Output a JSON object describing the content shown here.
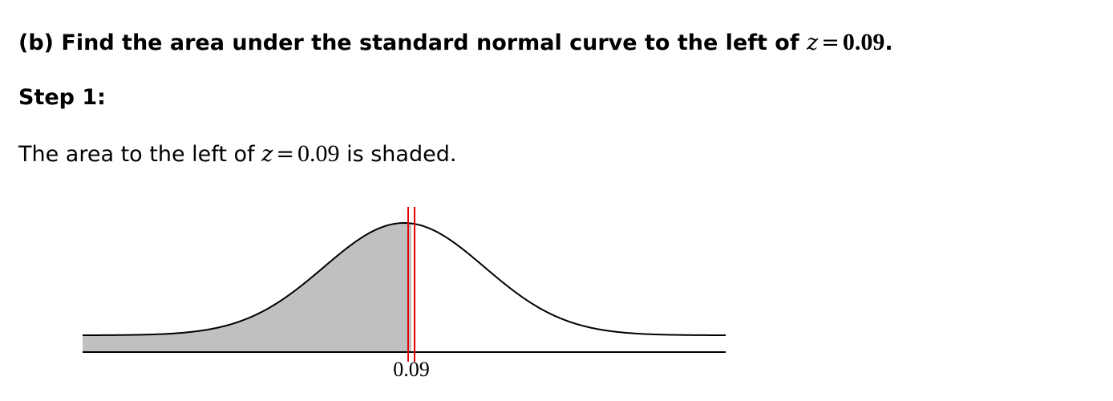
{
  "question": {
    "prefix": "(b) Find the area under the standard normal curve to the left of",
    "variable": "z",
    "operator": "=",
    "value": "0.09",
    "suffix": "."
  },
  "step": {
    "label": "Step 1:"
  },
  "description": {
    "prefix": "The area to the left of",
    "variable": "z",
    "operator": "=",
    "value": "0.09",
    "suffix": "is shaded."
  },
  "chart_data": {
    "type": "area",
    "distribution": "standard normal",
    "shade": "left",
    "z_value": 0.09,
    "marker_label": "0.09",
    "x_range": [
      -4,
      4
    ],
    "colors": {
      "curve": "#000000",
      "shaded": "#c0c0c0",
      "markers": "#e00000"
    }
  }
}
